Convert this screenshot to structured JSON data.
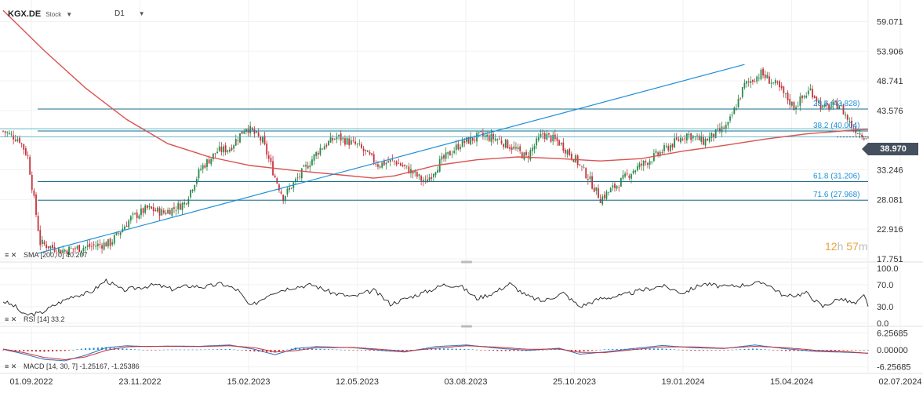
{
  "header": {
    "symbol": "KGX.DE",
    "type": "Stock",
    "timeframe": "D1"
  },
  "countdown": {
    "hours": "12",
    "h_unit": "h",
    "minutes": "57",
    "m_unit": "m"
  },
  "colors": {
    "up": "#2a8a4a",
    "down": "#c8323c",
    "sma": "#d9534f",
    "trend": "#1f8fd6",
    "fib": "#1a6e8a",
    "rsi": "#222222",
    "macd_line": "#2e6fb8",
    "signal_line": "#c8323c",
    "hist_pos": "#1f8fd6",
    "hist_neg": "#c8323c"
  },
  "chart_data": [
    {
      "type": "candlestick",
      "price_axis": [
        59.071,
        53.906,
        48.741,
        43.576,
        38.41,
        33.246,
        28.081,
        22.916,
        17.751
      ],
      "price_axis_labels": [
        "59.071",
        "53.906",
        "48.741",
        "43.576",
        "",
        "33.246",
        "28.081",
        "22.916",
        "17.751"
      ],
      "ylim": [
        17.751,
        62.0
      ],
      "last_price": "38.970",
      "x_labels": [
        "01.09.2022",
        "23.11.2022",
        "15.02.2023",
        "12.05.2023",
        "03.08.2023",
        "25.10.2023",
        "19.01.2024",
        "15.04.2024",
        "02.07.2024"
      ],
      "path_points": [
        [
          0,
          40.0
        ],
        [
          8,
          38.5
        ],
        [
          12,
          35.5
        ],
        [
          18,
          20.5
        ],
        [
          28,
          19.2
        ],
        [
          40,
          19.8
        ],
        [
          52,
          20.5
        ],
        [
          62,
          24.8
        ],
        [
          70,
          26.5
        ],
        [
          78,
          25.8
        ],
        [
          88,
          27.4
        ],
        [
          96,
          33.5
        ],
        [
          104,
          36.5
        ],
        [
          110,
          37.0
        ],
        [
          118,
          40.8
        ],
        [
          126,
          38.2
        ],
        [
          132,
          32.0
        ],
        [
          136,
          28.5
        ],
        [
          146,
          33.2
        ],
        [
          154,
          37.0
        ],
        [
          162,
          39.0
        ],
        [
          172,
          37.5
        ],
        [
          182,
          34.2
        ],
        [
          190,
          34.8
        ],
        [
          198,
          33.0
        ],
        [
          205,
          31.0
        ],
        [
          212,
          34.5
        ],
        [
          222,
          37.8
        ],
        [
          232,
          39.2
        ],
        [
          240,
          38.6
        ],
        [
          248,
          37.0
        ],
        [
          254,
          35.4
        ],
        [
          262,
          39.5
        ],
        [
          270,
          38.0
        ],
        [
          278,
          35.0
        ],
        [
          284,
          32.0
        ],
        [
          290,
          28.2
        ],
        [
          298,
          30.6
        ],
        [
          306,
          33.2
        ],
        [
          314,
          35.0
        ],
        [
          322,
          37.0
        ],
        [
          332,
          39.5
        ],
        [
          340,
          38.2
        ],
        [
          346,
          39.5
        ],
        [
          352,
          41.0
        ],
        [
          360,
          48.0
        ],
        [
          368,
          50.0
        ],
        [
          376,
          47.8
        ],
        [
          384,
          44.2
        ],
        [
          392,
          47.2
        ],
        [
          398,
          44.0
        ],
        [
          406,
          44.6
        ],
        [
          412,
          40.9
        ],
        [
          416,
          39.7
        ],
        [
          420,
          38.9
        ]
      ],
      "fib_levels": [
        {
          "label": "23.6 (43.828)",
          "value": 43.828
        },
        {
          "label": "38.2 (40.004)",
          "value": 40.004
        },
        {
          "label": "61.8 (31.206)",
          "value": 31.206
        },
        {
          "label": "71.6 (27.968)",
          "value": 27.968
        }
      ],
      "extra_levels": [
        40.4,
        39.0
      ],
      "trendline": {
        "from": [
          0,
          18.7
        ],
        "to": [
          360,
          51.6
        ]
      },
      "sma": {
        "label": "SMA [200, 0] 40.207",
        "points": [
          [
            0,
            61.0
          ],
          [
            20,
            54.0
          ],
          [
            40,
            47.5
          ],
          [
            60,
            42.0
          ],
          [
            80,
            37.8
          ],
          [
            100,
            35.5
          ],
          [
            120,
            34.0
          ],
          [
            140,
            33.2
          ],
          [
            160,
            32.5
          ],
          [
            180,
            31.8
          ],
          [
            190,
            32.2
          ],
          [
            210,
            34.0
          ],
          [
            230,
            35.0
          ],
          [
            250,
            35.5
          ],
          [
            270,
            35.2
          ],
          [
            290,
            34.8
          ],
          [
            310,
            35.2
          ],
          [
            330,
            36.5
          ],
          [
            350,
            37.5
          ],
          [
            370,
            38.6
          ],
          [
            390,
            39.5
          ],
          [
            410,
            40.1
          ],
          [
            420,
            40.3
          ]
        ]
      }
    },
    {
      "type": "line",
      "label": "RSI [14] 33.2",
      "axis_labels": [
        "100.0",
        "70.0",
        "30.0",
        "0.0"
      ],
      "axis_values": [
        100,
        70,
        30,
        0
      ],
      "ylim": [
        0,
        100
      ],
      "points": [
        [
          0,
          40
        ],
        [
          6,
          30
        ],
        [
          10,
          15
        ],
        [
          18,
          18
        ],
        [
          26,
          35
        ],
        [
          34,
          50
        ],
        [
          42,
          55
        ],
        [
          50,
          78
        ],
        [
          58,
          60
        ],
        [
          66,
          65
        ],
        [
          74,
          70
        ],
        [
          82,
          62
        ],
        [
          90,
          68
        ],
        [
          98,
          66
        ],
        [
          106,
          72
        ],
        [
          114,
          60
        ],
        [
          120,
          30
        ],
        [
          130,
          55
        ],
        [
          140,
          65
        ],
        [
          150,
          70
        ],
        [
          160,
          55
        ],
        [
          170,
          48
        ],
        [
          180,
          60
        ],
        [
          188,
          35
        ],
        [
          198,
          48
        ],
        [
          206,
          58
        ],
        [
          214,
          70
        ],
        [
          222,
          68
        ],
        [
          230,
          45
        ],
        [
          238,
          55
        ],
        [
          246,
          72
        ],
        [
          254,
          50
        ],
        [
          262,
          40
        ],
        [
          272,
          55
        ],
        [
          280,
          30
        ],
        [
          290,
          45
        ],
        [
          300,
          50
        ],
        [
          310,
          60
        ],
        [
          320,
          68
        ],
        [
          330,
          55
        ],
        [
          340,
          72
        ],
        [
          350,
          66
        ],
        [
          360,
          70
        ],
        [
          370,
          74
        ],
        [
          380,
          48
        ],
        [
          390,
          55
        ],
        [
          398,
          30
        ],
        [
          406,
          45
        ],
        [
          414,
          35
        ],
        [
          418,
          50
        ],
        [
          420,
          33
        ]
      ]
    },
    {
      "type": "line",
      "label": "MACD [14, 30, 7] -1.25167, -1.25386",
      "axis_labels": [
        "6.25685",
        "0.00000",
        "-6.25685"
      ],
      "axis_values": [
        6.25685,
        0,
        -6.25685
      ],
      "ylim": [
        -7.5,
        7.5
      ],
      "macd": [
        [
          0,
          0.2
        ],
        [
          10,
          -1.5
        ],
        [
          20,
          -3.5
        ],
        [
          30,
          -4.0
        ],
        [
          40,
          -2.0
        ],
        [
          50,
          0.8
        ],
        [
          60,
          1.5
        ],
        [
          70,
          1.2
        ],
        [
          80,
          1.4
        ],
        [
          95,
          1.3
        ],
        [
          110,
          1.8
        ],
        [
          122,
          0.2
        ],
        [
          132,
          -1.8
        ],
        [
          142,
          0.5
        ],
        [
          152,
          1.2
        ],
        [
          170,
          0.8
        ],
        [
          185,
          -0.3
        ],
        [
          195,
          -0.8
        ],
        [
          210,
          1.2
        ],
        [
          225,
          1.8
        ],
        [
          240,
          0.6
        ],
        [
          255,
          -0.2
        ],
        [
          270,
          0.6
        ],
        [
          280,
          -1.6
        ],
        [
          292,
          -0.8
        ],
        [
          305,
          0.4
        ],
        [
          320,
          1.6
        ],
        [
          335,
          0.8
        ],
        [
          350,
          0.5
        ],
        [
          365,
          1.8
        ],
        [
          380,
          0.4
        ],
        [
          395,
          -0.6
        ],
        [
          410,
          -0.9
        ],
        [
          420,
          -1.25
        ]
      ],
      "signal": [
        [
          0,
          0.3
        ],
        [
          10,
          -1.0
        ],
        [
          20,
          -2.8
        ],
        [
          30,
          -3.6
        ],
        [
          40,
          -2.6
        ],
        [
          50,
          -0.2
        ],
        [
          60,
          1.1
        ],
        [
          70,
          1.3
        ],
        [
          80,
          1.3
        ],
        [
          95,
          1.2
        ],
        [
          110,
          1.5
        ],
        [
          122,
          0.8
        ],
        [
          132,
          -0.8
        ],
        [
          142,
          -0.3
        ],
        [
          152,
          0.8
        ],
        [
          170,
          0.9
        ],
        [
          185,
          0.1
        ],
        [
          195,
          -0.5
        ],
        [
          210,
          0.6
        ],
        [
          225,
          1.5
        ],
        [
          240,
          1.0
        ],
        [
          255,
          0.2
        ],
        [
          270,
          0.3
        ],
        [
          280,
          -0.9
        ],
        [
          292,
          -1.0
        ],
        [
          305,
          0.0
        ],
        [
          320,
          1.1
        ],
        [
          335,
          1.1
        ],
        [
          350,
          0.6
        ],
        [
          365,
          1.3
        ],
        [
          380,
          0.8
        ],
        [
          395,
          -0.2
        ],
        [
          410,
          -0.7
        ],
        [
          420,
          -1.25
        ]
      ]
    }
  ]
}
